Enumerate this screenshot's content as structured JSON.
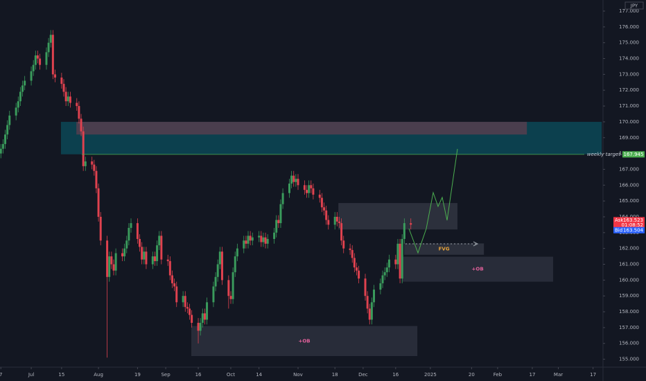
{
  "chart_data": {
    "type": "candlestick",
    "currency": "JPY",
    "up_color": "#3a9b5c",
    "down_color": "#e0424f",
    "xlim": [
      -14.4,
      263.6
    ],
    "ylim": [
      154.5,
      177.7
    ],
    "xticks": [
      {
        "value": -14,
        "label": "7"
      },
      {
        "value": 0,
        "label": "Jul"
      },
      {
        "value": 14,
        "label": "15"
      },
      {
        "value": 31,
        "label": "Aug"
      },
      {
        "value": 49,
        "label": "19"
      },
      {
        "value": 62,
        "label": "Sep"
      },
      {
        "value": 77,
        "label": "16"
      },
      {
        "value": 92,
        "label": "Oct"
      },
      {
        "value": 105,
        "label": "14"
      },
      {
        "value": 123,
        "label": "Nov"
      },
      {
        "value": 140,
        "label": "18"
      },
      {
        "value": 153,
        "label": "Dec"
      },
      {
        "value": 168,
        "label": "16"
      },
      {
        "value": 184,
        "label": "2025"
      },
      {
        "value": 203,
        "label": "20"
      },
      {
        "value": 215,
        "label": "Feb"
      },
      {
        "value": 231,
        "label": "17"
      },
      {
        "value": 243,
        "label": "Mar"
      },
      {
        "value": 259,
        "label": "17"
      }
    ],
    "yticks": [
      {
        "value": 155,
        "label": "155.000"
      },
      {
        "value": 156,
        "label": "156.000"
      },
      {
        "value": 157,
        "label": "157.000"
      },
      {
        "value": 158,
        "label": "158.000"
      },
      {
        "value": 159,
        "label": "159.000"
      },
      {
        "value": 160,
        "label": "160.000"
      },
      {
        "value": 161,
        "label": "161.000"
      },
      {
        "value": 162,
        "label": "162.000"
      },
      {
        "value": 163,
        "label": "163.000"
      },
      {
        "value": 164,
        "label": "164.000"
      },
      {
        "value": 165,
        "label": "165.000"
      },
      {
        "value": 166,
        "label": "166.000"
      },
      {
        "value": 167,
        "label": "167.000"
      },
      {
        "value": 168,
        "label": "168.000"
      },
      {
        "value": 169,
        "label": "169.000"
      },
      {
        "value": 170,
        "label": "170.000"
      },
      {
        "value": 171,
        "label": "171.000"
      },
      {
        "value": 172,
        "label": "172.000"
      },
      {
        "value": 173,
        "label": "173.000"
      },
      {
        "value": 174,
        "label": "174.000"
      },
      {
        "value": 175,
        "label": "175.000"
      },
      {
        "value": 176,
        "label": "176.000"
      },
      {
        "value": 177,
        "label": "177.000"
      }
    ],
    "x": [
      -14,
      -13,
      -12,
      -11,
      -10,
      -7,
      -6,
      -5,
      -4,
      -3,
      0,
      1,
      2,
      3,
      4,
      7,
      8,
      9,
      10,
      11,
      14,
      15,
      16,
      17,
      18,
      21,
      22,
      23,
      24,
      25,
      28,
      29,
      30,
      31,
      32,
      35,
      36,
      37,
      38,
      39,
      42,
      43,
      44,
      45,
      46,
      49,
      50,
      51,
      52,
      53,
      56,
      57,
      58,
      59,
      60,
      63,
      64,
      65,
      66,
      67,
      70,
      71,
      72,
      73,
      74,
      77,
      78,
      79,
      80,
      81,
      84,
      85,
      86,
      87,
      88,
      91,
      92,
      93,
      94,
      95,
      98,
      99,
      100,
      101,
      102,
      105,
      106,
      107,
      108,
      109,
      112,
      113,
      114,
      115,
      116,
      119,
      120,
      121,
      122,
      123,
      126,
      127,
      128,
      129,
      130,
      133,
      134,
      135,
      136,
      137,
      140,
      141,
      142,
      143,
      144,
      147,
      148,
      149,
      150,
      151,
      154,
      155,
      156,
      157,
      158,
      161,
      162,
      163,
      164,
      165,
      168,
      169,
      170,
      171,
      172,
      175
    ],
    "open": [
      168.0,
      168.3,
      168.6,
      169.2,
      169.8,
      170.4,
      170.9,
      171.3,
      171.9,
      172.3,
      172.6,
      173.2,
      173.6,
      174.2,
      174.0,
      173.6,
      174.4,
      175.0,
      175.5,
      173.0,
      172.8,
      172.4,
      171.9,
      171.3,
      171.6,
      171.2,
      171.0,
      170.2,
      169.4,
      167.2,
      167.5,
      167.3,
      166.9,
      165.8,
      164.0,
      162.5,
      160.2,
      161.5,
      161.0,
      160.6,
      161.7,
      161.5,
      162.0,
      162.5,
      163.3,
      163.6,
      162.6,
      162.1,
      161.3,
      161.8,
      161.0,
      161.5,
      161.2,
      162.2,
      162.8,
      161.3,
      161.2,
      160.3,
      159.8,
      159.6,
      158.6,
      159.0,
      158.3,
      158.2,
      157.8,
      157.3,
      156.8,
      157.3,
      157.9,
      157.5,
      158.6,
      159.6,
      160.2,
      161.0,
      161.8,
      160.0,
      159.0,
      158.8,
      160.5,
      161.5,
      162.0,
      162.5,
      162.3,
      162.8,
      162.5,
      162.7,
      162.8,
      162.4,
      162.7,
      162.3,
      162.6,
      163.0,
      163.8,
      163.6,
      164.8,
      165.5,
      166.1,
      166.6,
      166.2,
      166.4,
      166.0,
      165.7,
      165.5,
      166.0,
      165.8,
      165.4,
      165.2,
      164.6,
      164.4,
      163.8,
      163.5,
      164.0,
      163.7,
      163.6,
      162.5,
      162.0,
      161.9,
      161.4,
      160.8,
      160.6,
      160.1,
      159.0,
      158.2,
      157.5,
      158.6,
      159.4,
      159.8,
      160.3,
      160.5,
      160.8,
      161.3,
      161.0,
      162.3,
      160.1,
      162.6,
      163.6
    ],
    "high": [
      168.6,
      168.9,
      169.5,
      170.1,
      170.7,
      171.2,
      171.6,
      172.2,
      172.6,
      172.9,
      173.5,
      173.9,
      174.5,
      174.5,
      174.3,
      174.7,
      175.3,
      175.8,
      175.8,
      173.3,
      173.1,
      172.7,
      172.2,
      171.9,
      171.9,
      171.5,
      171.3,
      170.5,
      169.7,
      167.8,
      167.8,
      167.6,
      167.2,
      166.1,
      164.3,
      162.8,
      161.8,
      161.8,
      161.3,
      162.0,
      162.0,
      162.3,
      162.8,
      163.6,
      163.9,
      163.9,
      162.9,
      162.4,
      162.1,
      162.1,
      161.8,
      161.8,
      162.5,
      163.1,
      163.1,
      161.6,
      161.5,
      160.6,
      160.1,
      159.9,
      159.3,
      159.3,
      158.6,
      158.5,
      158.1,
      157.6,
      157.6,
      158.2,
      158.2,
      158.9,
      159.9,
      160.5,
      161.3,
      162.1,
      162.1,
      160.3,
      159.3,
      160.8,
      161.8,
      162.3,
      162.8,
      162.8,
      163.1,
      163.1,
      163.0,
      163.1,
      163.1,
      163.0,
      163.0,
      162.9,
      163.3,
      164.1,
      164.1,
      165.1,
      165.8,
      166.4,
      166.9,
      166.9,
      166.7,
      166.7,
      166.3,
      166.0,
      166.3,
      166.3,
      166.1,
      165.7,
      165.5,
      164.9,
      164.7,
      164.1,
      164.3,
      164.3,
      164.0,
      163.9,
      162.8,
      162.3,
      162.2,
      161.7,
      161.1,
      160.9,
      160.4,
      159.3,
      158.5,
      158.9,
      159.7,
      160.1,
      160.6,
      160.8,
      161.1,
      161.6,
      161.6,
      162.6,
      162.6,
      162.9,
      163.9,
      163.9
    ],
    "low": [
      167.7,
      168.0,
      168.3,
      168.9,
      169.5,
      170.1,
      170.6,
      171.0,
      171.6,
      172.0,
      172.3,
      172.9,
      173.3,
      173.7,
      173.3,
      173.3,
      174.1,
      174.7,
      172.7,
      172.5,
      172.1,
      171.6,
      171.0,
      171.0,
      170.9,
      170.7,
      169.9,
      169.1,
      166.9,
      166.9,
      167.0,
      166.6,
      165.5,
      163.7,
      162.2,
      155.1,
      159.9,
      160.7,
      160.3,
      160.3,
      161.2,
      161.2,
      161.7,
      162.2,
      163.0,
      162.3,
      161.8,
      161.0,
      161.0,
      160.7,
      160.7,
      160.9,
      160.9,
      161.9,
      161.0,
      160.9,
      160.0,
      159.5,
      159.3,
      158.3,
      158.3,
      158.0,
      157.9,
      157.5,
      157.0,
      156.0,
      156.5,
      157.0,
      157.2,
      157.2,
      158.3,
      159.3,
      159.9,
      160.7,
      159.7,
      158.2,
      158.5,
      158.5,
      160.2,
      161.2,
      161.7,
      162.0,
      162.0,
      162.2,
      162.2,
      162.4,
      162.1,
      162.1,
      162.0,
      162.0,
      162.3,
      162.7,
      163.3,
      163.3,
      164.5,
      165.2,
      165.8,
      165.9,
      165.9,
      165.7,
      165.4,
      165.2,
      165.2,
      165.5,
      165.1,
      164.9,
      164.3,
      164.1,
      163.5,
      163.2,
      163.2,
      163.4,
      163.3,
      162.2,
      161.7,
      161.6,
      161.1,
      160.5,
      160.3,
      159.8,
      158.7,
      157.9,
      157.2,
      157.2,
      158.3,
      159.1,
      159.5,
      160.0,
      160.2,
      160.5,
      160.7,
      160.7,
      159.8,
      159.8,
      162.3,
      163.2
    ],
    "close": [
      168.3,
      168.6,
      169.2,
      169.8,
      170.4,
      170.9,
      171.3,
      171.9,
      172.3,
      172.6,
      173.2,
      173.6,
      174.2,
      174.0,
      173.6,
      174.4,
      175.0,
      175.5,
      173.0,
      172.8,
      172.4,
      171.9,
      171.3,
      171.6,
      171.2,
      171.0,
      170.2,
      169.4,
      167.2,
      167.5,
      167.3,
      166.9,
      165.8,
      164.0,
      162.5,
      160.2,
      161.5,
      161.0,
      160.6,
      161.7,
      161.5,
      162.0,
      162.5,
      163.3,
      163.6,
      162.6,
      162.1,
      161.3,
      161.8,
      161.0,
      161.5,
      161.2,
      162.2,
      162.8,
      161.3,
      161.2,
      160.3,
      159.8,
      159.6,
      158.6,
      159.0,
      158.3,
      158.2,
      157.8,
      157.3,
      156.8,
      157.3,
      157.9,
      157.5,
      158.6,
      159.6,
      160.2,
      161.0,
      161.8,
      160.0,
      159.0,
      158.8,
      160.5,
      161.5,
      162.0,
      162.5,
      162.3,
      162.8,
      162.5,
      162.7,
      162.8,
      162.4,
      162.7,
      162.3,
      162.6,
      163.0,
      163.8,
      163.6,
      164.8,
      165.5,
      166.1,
      166.6,
      166.2,
      166.4,
      166.0,
      165.7,
      165.5,
      166.0,
      165.8,
      165.4,
      165.2,
      164.6,
      164.4,
      163.8,
      163.5,
      164.0,
      163.7,
      163.6,
      162.5,
      162.0,
      161.9,
      161.4,
      160.8,
      160.6,
      160.1,
      159.0,
      158.2,
      157.5,
      158.6,
      159.4,
      159.8,
      160.3,
      160.5,
      160.8,
      161.3,
      161.0,
      162.3,
      160.1,
      162.6,
      163.6,
      163.5
    ],
    "zones": [
      {
        "x": [
          13.7,
          263.0
        ],
        "y": [
          167.95,
          170.0
        ],
        "color": "rgba(0,140,160,0.35)"
      },
      {
        "x": [
          20.8,
          228.5
        ],
        "y": [
          169.2,
          170.0
        ],
        "color": "rgba(150,60,80,0.45)"
      },
      {
        "x": [
          141.6,
          196.5
        ],
        "y": [
          163.2,
          164.87
        ],
        "color": "rgba(120,125,140,0.25)"
      },
      {
        "x": [
          171.9,
          208.7
        ],
        "y": [
          161.6,
          162.32
        ],
        "color": "rgba(120,125,140,0.25)",
        "label": "FVG",
        "label_color": "#e8a33a"
      },
      {
        "x": [
          171.0,
          240.6
        ],
        "y": [
          159.9,
          161.48
        ],
        "color": "rgba(120,125,140,0.22)",
        "label": "+OB",
        "label_color": "#e0609a"
      },
      {
        "x": [
          73.8,
          178.0
        ],
        "y": [
          155.2,
          157.1
        ],
        "color": "rgba(120,125,140,0.22)",
        "label": "+OB",
        "label_color": "#e0609a"
      }
    ],
    "target": {
      "value": 167.945,
      "label": "weekly target",
      "color": "#4caf50"
    },
    "quote": {
      "ask_label": "Ask",
      "ask": 163.523,
      "countdown": "01:08:52",
      "bid_label": "Bid",
      "bid": 163.504
    }
  }
}
